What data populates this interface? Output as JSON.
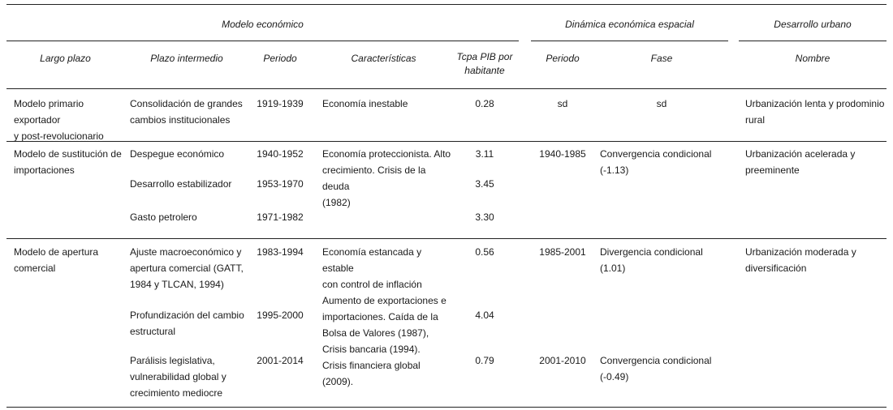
{
  "group_headers": {
    "modelo": "Modelo económico",
    "dinamica": "Dinámica económica espacial",
    "desarrollo": "Desarrollo urbano"
  },
  "column_headers": {
    "largo_plazo": "Largo plazo",
    "plazo_intermedio": "Plazo intermedio",
    "periodo": "Periodo",
    "caracteristicas": "Características",
    "tcpa": "Tcpa PIB por\nhabitante",
    "periodo2": "Periodo",
    "fase": "Fase",
    "nombre": "Nombre"
  },
  "rows": [
    {
      "largo": "Modelo primario exportador\ny post-revolucionario",
      "caracteristicas": "Economía inestable",
      "dinamica_periodo": "sd",
      "fase": "sd",
      "nombre": "Urbanización lenta y prodominio\nrural",
      "sub": [
        {
          "plazo": "Consolidación de grandes\ncambios institucionales",
          "periodo": "1919-1939",
          "tcpa": "0.28"
        }
      ]
    },
    {
      "largo": "Modelo de sustitución de\nimportaciones",
      "caracteristicas": "Economía proteccionista. Alto\ncrecimiento. Crisis de la deuda\n(1982)",
      "dinamica_periodo": "1940-1985",
      "fase": "Convergencia condicional\n(-1.13)",
      "nombre": "Urbanización acelerada y\npreeminente",
      "sub": [
        {
          "plazo": "Despegue económico",
          "periodo": "1940-1952",
          "tcpa": "3.11"
        },
        {
          "plazo": "Desarrollo estabilizador",
          "periodo": "1953-1970",
          "tcpa": "3.45"
        },
        {
          "plazo": "Gasto petrolero",
          "periodo": "1971-1982",
          "tcpa": "3.30"
        }
      ]
    },
    {
      "largo": "Modelo de apertura\ncomercial",
      "caracteristicas": "Economía estancada y estable\ncon control de inflación\nAumento de exportaciones e\nimportaciones. Caída de la\nBolsa de Valores (1987),\nCrisis bancaria (1994).\nCrisis financiera global (2009).",
      "dinamica_periodo": "1985-2001",
      "fase": "Divergencia condicional (1.01)",
      "dinamica_periodo_2": "2001-2010",
      "fase_2": "Convergencia condicional\n(-0.49)",
      "nombre": "Urbanización moderada y\ndiversificación",
      "sub": [
        {
          "plazo": "Ajuste macroeconómico y\napertura comercial (GATT,\n1984 y TLCAN, 1994)",
          "periodo": "1983-1994",
          "tcpa": "0.56"
        },
        {
          "plazo": "Profundización del cambio\nestructural",
          "periodo": "1995-2000",
          "tcpa": "4.04"
        },
        {
          "plazo": "Parálisis legislativa,\nvulnerabilidad global y\ncrecimiento mediocre",
          "periodo": "2001-2014",
          "tcpa": "0.79"
        }
      ]
    }
  ]
}
